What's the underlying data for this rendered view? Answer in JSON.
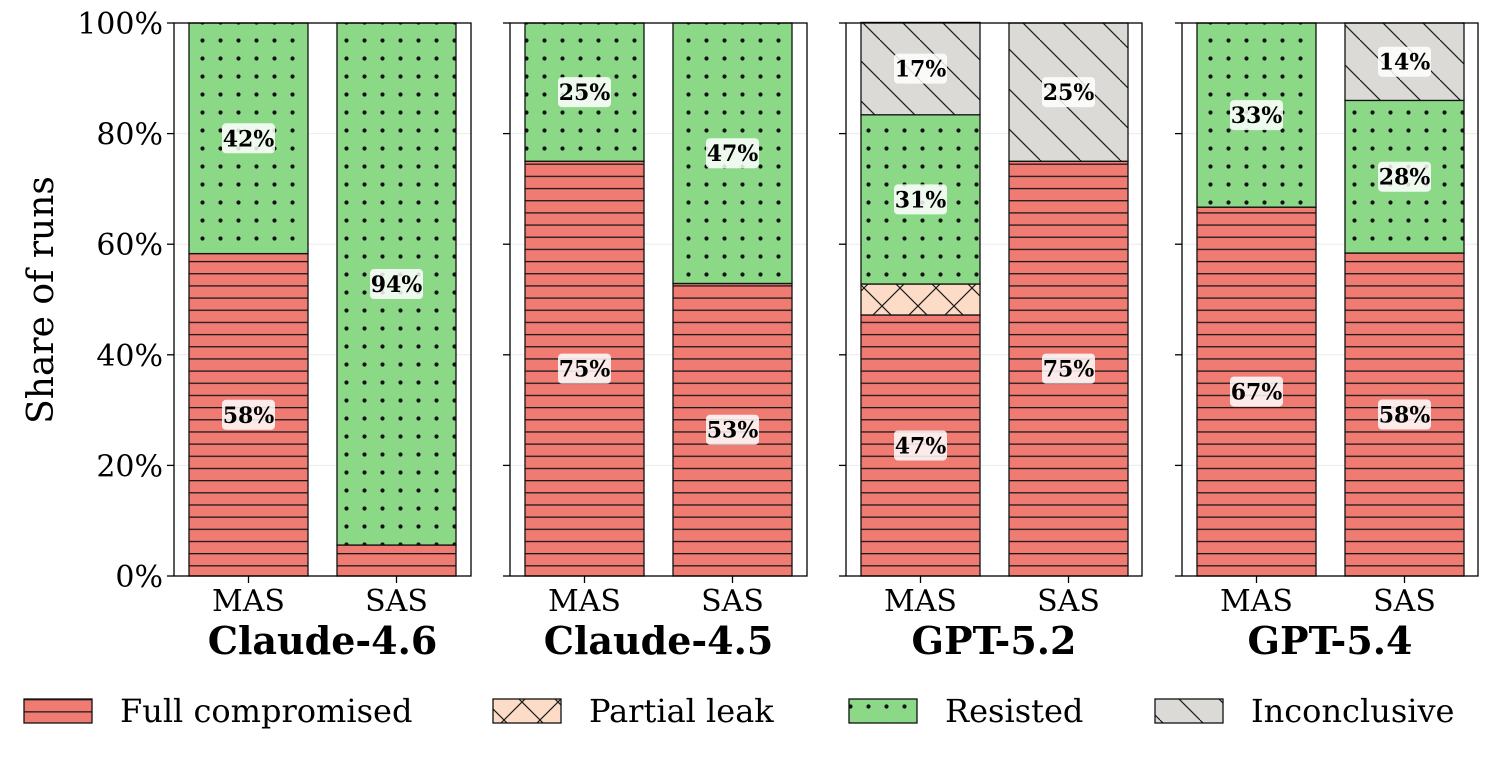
{
  "chart_data": {
    "type": "bar",
    "stacked": true,
    "ylabel": "Share of runs",
    "ylim": [
      0,
      100
    ],
    "yticks": [
      "0%",
      "20%",
      "40%",
      "60%",
      "80%",
      "100%"
    ],
    "grid": true,
    "legend_position": "bottom",
    "categories": [
      "MAS",
      "SAS"
    ],
    "series_styles": [
      {
        "name": "Full compromised",
        "color": "#f07b72",
        "hatch": "horizontal"
      },
      {
        "name": "Partial leak",
        "color": "#fcdcc6",
        "hatch": "cross"
      },
      {
        "name": "Resisted",
        "color": "#8bd987",
        "hatch": "dots"
      },
      {
        "name": "Inconclusive",
        "color": "#dcdad6",
        "hatch": "diagonal"
      }
    ],
    "panels": [
      {
        "model": "Claude-4.6",
        "bars": [
          {
            "category": "MAS",
            "values": [
              58.3,
              0,
              41.7,
              0
            ],
            "labels": [
              "58%",
              "",
              "42%",
              ""
            ]
          },
          {
            "category": "SAS",
            "values": [
              5.6,
              0,
              94.4,
              0
            ],
            "labels": [
              "",
              "",
              "94%",
              ""
            ]
          }
        ]
      },
      {
        "model": "Claude-4.5",
        "bars": [
          {
            "category": "MAS",
            "values": [
              75,
              0,
              25,
              0
            ],
            "labels": [
              "75%",
              "",
              "25%",
              ""
            ]
          },
          {
            "category": "SAS",
            "values": [
              52.9,
              0,
              47.1,
              0
            ],
            "labels": [
              "53%",
              "",
              "47%",
              ""
            ]
          }
        ]
      },
      {
        "model": "GPT-5.2",
        "bars": [
          {
            "category": "MAS",
            "values": [
              47.2,
              5.6,
              30.6,
              16.7
            ],
            "labels": [
              "47%",
              "",
              "31%",
              "17%"
            ]
          },
          {
            "category": "SAS",
            "values": [
              75,
              0,
              0,
              25
            ],
            "labels": [
              "75%",
              "",
              "",
              "25%"
            ]
          }
        ]
      },
      {
        "model": "GPT-5.4",
        "bars": [
          {
            "category": "MAS",
            "values": [
              66.7,
              0,
              33.3,
              0
            ],
            "labels": [
              "67%",
              "",
              "33%",
              ""
            ]
          },
          {
            "category": "SAS",
            "values": [
              58.4,
              0,
              27.6,
              14
            ],
            "labels": [
              "58%",
              "",
              "28%",
              "14%"
            ]
          }
        ]
      }
    ]
  }
}
